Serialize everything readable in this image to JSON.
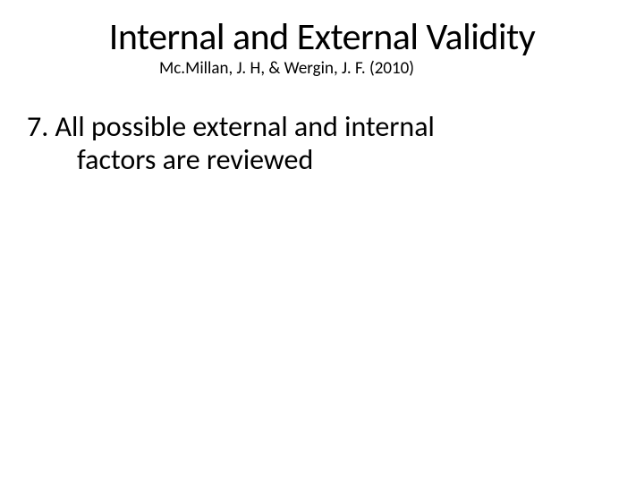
{
  "slide": {
    "title": "Internal and External Validity",
    "subtitle": "Mc.Millan, J. H, & Wergin, J. F. (2010)",
    "bullet_number": "7.",
    "bullet_line1": "All possible external and internal",
    "bullet_line2": "factors are reviewed"
  },
  "style": {
    "background_color": "#ffffff",
    "text_color": "#000000",
    "title_fontsize": 42,
    "subtitle_fontsize": 19,
    "body_fontsize": 32,
    "font_family": "Calibri"
  }
}
